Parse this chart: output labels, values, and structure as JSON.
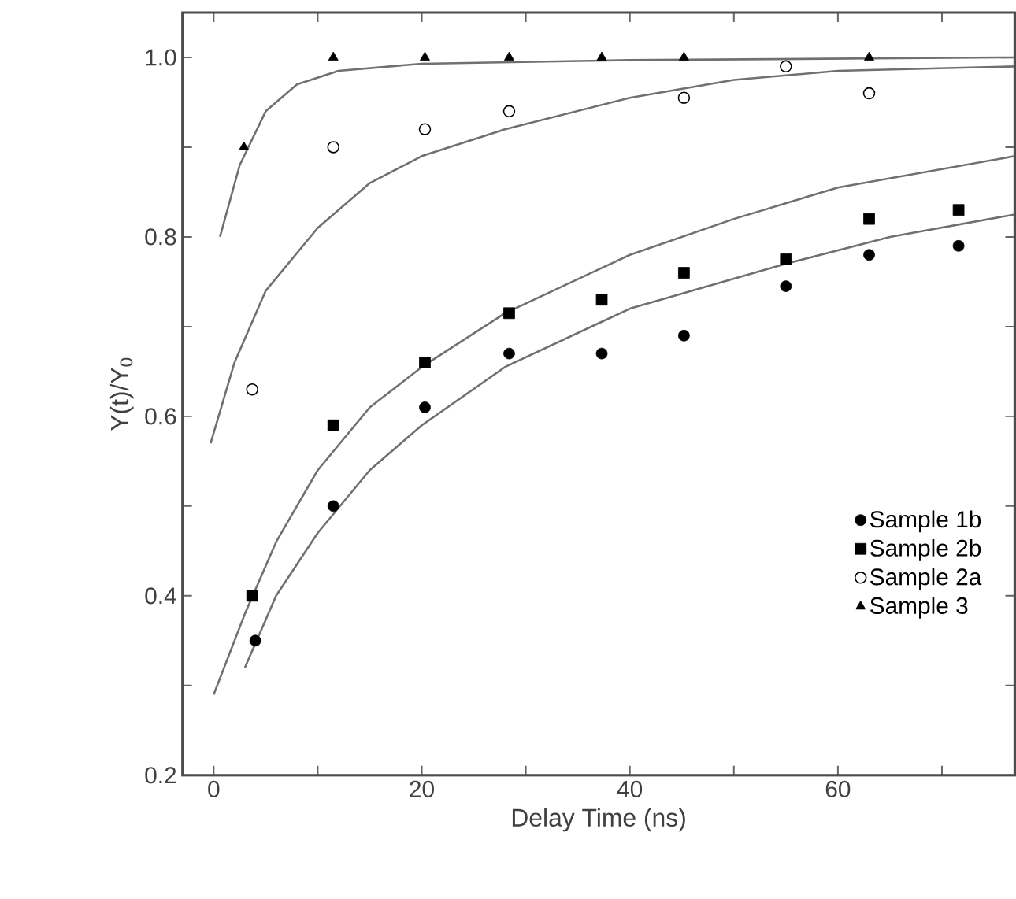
{
  "chart_data": {
    "type": "scatter",
    "xlabel": "Delay Time  (ns)",
    "ylabel": "Y(t)/Y$_{0}$",
    "xlim": [
      -3,
      77
    ],
    "ylim": [
      0.2,
      1.05
    ],
    "xticks": [
      0,
      {
        "value": 10,
        "label": null
      },
      20,
      {
        "value": 30,
        "label": null
      },
      40,
      {
        "value": 50,
        "label": null
      },
      60,
      {
        "value": 70,
        "label": null
      }
    ],
    "yticks": [
      0.2,
      {
        "value": 0.3,
        "label": null
      },
      0.4,
      {
        "value": 0.5,
        "label": null
      },
      0.6,
      {
        "value": 0.7,
        "label": null
      },
      0.8,
      {
        "value": 0.9,
        "label": null
      },
      {
        "value": 1.0,
        "label": "1.0"
      }
    ],
    "legend": "bottom right",
    "series": [
      {
        "type": "line",
        "color": "#707070",
        "marker": "none",
        "x": [
          0.6,
          2.5,
          5,
          8,
          12,
          20,
          40,
          77
        ],
        "values": [
          0.8,
          0.88,
          0.94,
          0.97,
          0.985,
          0.993,
          0.997,
          1.0
        ]
      },
      {
        "type": "line",
        "color": "#707070",
        "marker": "none",
        "x": [
          -0.3,
          2,
          5,
          10,
          15,
          20,
          28,
          40,
          50,
          60,
          77
        ],
        "values": [
          0.57,
          0.66,
          0.74,
          0.81,
          0.86,
          0.89,
          0.92,
          0.955,
          0.975,
          0.985,
          0.99
        ]
      },
      {
        "type": "line",
        "color": "#707070",
        "marker": "none",
        "x": [
          0,
          3,
          6,
          10,
          15,
          20,
          28,
          40,
          50,
          60,
          77
        ],
        "values": [
          0.29,
          0.38,
          0.46,
          0.54,
          0.61,
          0.655,
          0.715,
          0.78,
          0.82,
          0.855,
          0.89
        ]
      },
      {
        "type": "line",
        "color": "#707070",
        "marker": "none",
        "x": [
          3,
          6,
          10,
          15,
          20,
          28,
          40,
          55,
          65,
          77
        ],
        "values": [
          0.32,
          0.4,
          0.47,
          0.54,
          0.59,
          0.655,
          0.72,
          0.77,
          0.8,
          0.825
        ]
      },
      {
        "name": "Sample 1b",
        "color": "#000000",
        "marker": "circle",
        "x": [
          4,
          11.5,
          20.3,
          28.4,
          37.3,
          45.2,
          55,
          63,
          71.6
        ],
        "values": [
          0.35,
          0.5,
          0.61,
          0.67,
          0.67,
          0.69,
          0.745,
          0.78,
          0.79
        ]
      },
      {
        "name": "Sample 2b",
        "color": "#000000",
        "marker": "square",
        "x": [
          3.7,
          11.5,
          20.3,
          28.4,
          37.3,
          45.2,
          55,
          63,
          71.6
        ],
        "values": [
          0.4,
          0.59,
          0.66,
          0.715,
          0.73,
          0.76,
          0.775,
          0.82,
          0.83
        ]
      },
      {
        "name": "Sample 2a",
        "color": "#000000",
        "marker": "open circle",
        "x": [
          3.7,
          11.5,
          20.3,
          28.4,
          45.2,
          55,
          63
        ],
        "values": [
          0.63,
          0.9,
          0.92,
          0.94,
          0.955,
          0.99,
          0.96
        ]
      },
      {
        "name": "Sample 3",
        "color": "#000000",
        "marker": "triangle",
        "x": [
          2.9,
          11.5,
          20.3,
          28.4,
          37.3,
          45.2,
          63
        ],
        "values": [
          0.9,
          1.0,
          1.0,
          1.0,
          1.0,
          1.0,
          1.0
        ]
      }
    ]
  }
}
